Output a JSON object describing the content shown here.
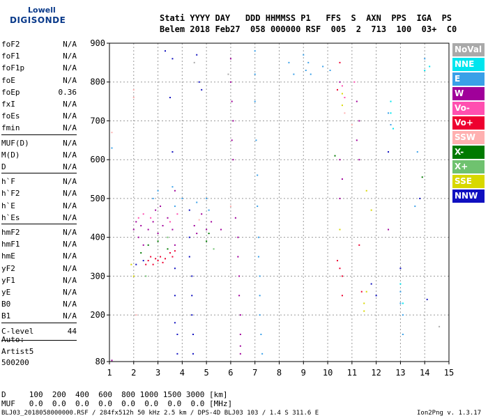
{
  "logo": {
    "line1": "Lowell",
    "line2": "DIGISONDE"
  },
  "header": {
    "line1": "Stati YYYY DAY   DDD HHMMSS P1   FFS  S  AXN  PPS  IGA  PS",
    "line2": "Belem 2018 Feb27  058 000000 RSF  005  2  713  100  03+  C0"
  },
  "params": [
    {
      "name": "foF2",
      "value": "N/A"
    },
    {
      "name": "foF1",
      "value": "N/A"
    },
    {
      "name": "foF1p",
      "value": "N/A"
    },
    {
      "name": "foE",
      "value": "N/A"
    },
    {
      "name": "foEp",
      "value": "0.36"
    },
    {
      "name": "fxI",
      "value": "N/A"
    },
    {
      "name": "foEs",
      "value": "N/A"
    },
    {
      "name": "fmin",
      "value": "N/A"
    },
    {
      "name": "MUF(D)",
      "value": "N/A"
    },
    {
      "name": "M(D)",
      "value": "N/A"
    },
    {
      "name": "D",
      "value": "N/A"
    },
    {
      "name": "h`F",
      "value": "N/A"
    },
    {
      "name": "h`F2",
      "value": "N/A"
    },
    {
      "name": "h`E",
      "value": "N/A"
    },
    {
      "name": "h`Es",
      "value": "N/A"
    },
    {
      "name": "hmF2",
      "value": "N/A"
    },
    {
      "name": "hmF1",
      "value": "N/A"
    },
    {
      "name": "hmE",
      "value": "N/A"
    },
    {
      "name": "yF2",
      "value": "N/A"
    },
    {
      "name": "yF1",
      "value": "N/A"
    },
    {
      "name": "yE",
      "value": "N/A"
    },
    {
      "name": "B0",
      "value": "N/A"
    },
    {
      "name": "B1",
      "value": "N/A"
    },
    {
      "name": "C-level",
      "value": "44"
    }
  ],
  "auto": {
    "line1": "Auto:",
    "line2": "Artist5",
    "line3": "500200"
  },
  "footer": {
    "d_row": "D     100  200  400  600  800 1000 1500 3000 [km]",
    "muf_row": "MUF   0.0  0.0  0.0  0.0  0.0  0.0  0.0  0.0 [MHz]",
    "info": "BLJ03_2018058000000.RSF / 284fx512h 50 kHz 2.5 km / DPS-4D BLJ03 103 / 1.4 S 311.6 E",
    "version": "Ion2Png v. 1.3.17"
  },
  "legend": [
    {
      "label": "NoVal",
      "color": "#a9a9a9"
    },
    {
      "label": "NNE",
      "color": "#00e5ee"
    },
    {
      "label": "E",
      "color": "#3aa0e8"
    },
    {
      "label": "W",
      "color": "#a0009a"
    },
    {
      "label": "Vo-",
      "color": "#ff4fb0"
    },
    {
      "label": "Vo+",
      "color": "#ee0030"
    },
    {
      "label": "SSW",
      "color": "#ffb0b0"
    },
    {
      "label": "X-",
      "color": "#007a00"
    },
    {
      "label": "X+",
      "color": "#6fc26f"
    },
    {
      "label": "SSE",
      "color": "#d8d800"
    },
    {
      "label": "NNW",
      "color": "#1010c0"
    }
  ],
  "chart_data": {
    "type": "scatter",
    "xlim": [
      1,
      15
    ],
    "ylim": [
      80,
      900
    ],
    "x_ticks": [
      1,
      2,
      3,
      4,
      5,
      6,
      7,
      8,
      9,
      10,
      11,
      12,
      13,
      14,
      15
    ],
    "y_ticks": [
      80,
      200,
      300,
      400,
      500,
      600,
      700,
      800,
      900
    ],
    "grid": true,
    "series": [
      {
        "name": "W",
        "color": "#a0009a",
        "points": [
          [
            2.0,
            420
          ],
          [
            2.1,
            440
          ],
          [
            2.2,
            400
          ],
          [
            2.3,
            430
          ],
          [
            2.4,
            380
          ],
          [
            2.6,
            420
          ],
          [
            2.8,
            440
          ],
          [
            3.0,
            410
          ],
          [
            3.2,
            430
          ],
          [
            3.4,
            450
          ],
          [
            3.6,
            420
          ],
          [
            3.7,
            380
          ],
          [
            2.9,
            470
          ],
          [
            3.1,
            480
          ],
          [
            4.5,
            430
          ],
          [
            4.6,
            410
          ],
          [
            4.8,
            460
          ],
          [
            5.0,
            420
          ],
          [
            5.2,
            440
          ],
          [
            5.6,
            420
          ],
          [
            6.0,
            860
          ],
          [
            6.0,
            800
          ],
          [
            6.05,
            750
          ],
          [
            6.1,
            700
          ],
          [
            6.05,
            650
          ],
          [
            6.1,
            600
          ],
          [
            6.2,
            450
          ],
          [
            6.3,
            400
          ],
          [
            6.3,
            350
          ],
          [
            6.35,
            300
          ],
          [
            6.35,
            250
          ],
          [
            6.4,
            200
          ],
          [
            6.4,
            150
          ],
          [
            6.4,
            120
          ],
          [
            6.4,
            100
          ],
          [
            10.5,
            800
          ],
          [
            10.5,
            600
          ],
          [
            10.6,
            550
          ],
          [
            10.5,
            500
          ],
          [
            11.2,
            750
          ],
          [
            11.3,
            700
          ],
          [
            11.2,
            650
          ],
          [
            11.3,
            600
          ],
          [
            12.5,
            420
          ],
          [
            3.7,
            520
          ],
          [
            1.1,
            83
          ]
        ]
      },
      {
        "name": "Vo+",
        "color": "#ee0030",
        "points": [
          [
            2.6,
            340
          ],
          [
            2.7,
            350
          ],
          [
            2.8,
            330
          ],
          [
            2.9,
            345
          ],
          [
            3.0,
            340
          ],
          [
            3.1,
            350
          ],
          [
            3.2,
            335
          ],
          [
            3.3,
            345
          ],
          [
            3.5,
            360
          ],
          [
            3.6,
            350
          ],
          [
            3.7,
            365
          ],
          [
            2.5,
            330
          ],
          [
            10.4,
            340
          ],
          [
            10.5,
            320
          ],
          [
            10.6,
            300
          ],
          [
            10.6,
            250
          ],
          [
            10.5,
            850
          ],
          [
            10.4,
            780
          ],
          [
            11.3,
            380
          ],
          [
            11.4,
            260
          ]
        ]
      },
      {
        "name": "Vo-",
        "color": "#ff4fb0",
        "points": [
          [
            2.2,
            450
          ],
          [
            2.4,
            460
          ],
          [
            2.7,
            450
          ],
          [
            3.5,
            440
          ],
          [
            3.8,
            460
          ],
          [
            10.6,
            790
          ],
          [
            10.7,
            760
          ],
          [
            11.1,
            800
          ]
        ]
      },
      {
        "name": "E",
        "color": "#3aa0e8",
        "points": [
          [
            2.8,
            500
          ],
          [
            3.0,
            520
          ],
          [
            3.6,
            530
          ],
          [
            3.7,
            480
          ],
          [
            4.0,
            500
          ],
          [
            4.6,
            490
          ],
          [
            5.0,
            500
          ],
          [
            5.1,
            470
          ],
          [
            7.0,
            880
          ],
          [
            7.0,
            820
          ],
          [
            7.0,
            750
          ],
          [
            7.05,
            650
          ],
          [
            7.1,
            560
          ],
          [
            7.1,
            480
          ],
          [
            7.15,
            400
          ],
          [
            7.15,
            350
          ],
          [
            7.2,
            300
          ],
          [
            7.2,
            250
          ],
          [
            7.2,
            200
          ],
          [
            7.25,
            150
          ],
          [
            7.3,
            100
          ],
          [
            8.4,
            850
          ],
          [
            8.6,
            820
          ],
          [
            9.0,
            870
          ],
          [
            9.1,
            830
          ],
          [
            9.2,
            850
          ],
          [
            9.3,
            820
          ],
          [
            9.8,
            840
          ],
          [
            10.1,
            830
          ],
          [
            12.5,
            720
          ],
          [
            12.6,
            690
          ],
          [
            13.0,
            260
          ],
          [
            13.0,
            230
          ],
          [
            13.1,
            200
          ],
          [
            13.1,
            150
          ],
          [
            14.0,
            860
          ],
          [
            13.7,
            620
          ],
          [
            13.6,
            480
          ],
          [
            1.1,
            630
          ]
        ]
      },
      {
        "name": "NNW",
        "color": "#1010c0",
        "points": [
          [
            3.3,
            880
          ],
          [
            3.6,
            860
          ],
          [
            3.5,
            760
          ],
          [
            3.6,
            620
          ],
          [
            3.7,
            320
          ],
          [
            3.7,
            250
          ],
          [
            3.7,
            180
          ],
          [
            3.8,
            150
          ],
          [
            3.8,
            100
          ],
          [
            4.3,
            470
          ],
          [
            4.3,
            400
          ],
          [
            4.3,
            350
          ],
          [
            4.4,
            300
          ],
          [
            4.4,
            250
          ],
          [
            4.4,
            200
          ],
          [
            4.45,
            150
          ],
          [
            4.45,
            100
          ],
          [
            4.6,
            870
          ],
          [
            4.7,
            800
          ],
          [
            4.8,
            780
          ],
          [
            2.1,
            330
          ],
          [
            2.4,
            340
          ],
          [
            12.5,
            620
          ],
          [
            13.0,
            320
          ],
          [
            13.8,
            500
          ],
          [
            14.1,
            240
          ],
          [
            11.8,
            280
          ],
          [
            12.0,
            250
          ]
        ]
      },
      {
        "name": "NNE",
        "color": "#00e5ee",
        "points": [
          [
            12.6,
            750
          ],
          [
            12.6,
            720
          ],
          [
            12.7,
            680
          ],
          [
            13.0,
            280
          ],
          [
            13.1,
            230
          ],
          [
            14.0,
            830
          ],
          [
            14.2,
            840
          ]
        ]
      },
      {
        "name": "X-",
        "color": "#007a00",
        "points": [
          [
            2.3,
            360
          ],
          [
            2.6,
            380
          ],
          [
            3.0,
            390
          ],
          [
            3.4,
            370
          ],
          [
            5.0,
            390
          ],
          [
            5.1,
            410
          ],
          [
            10.3,
            610
          ],
          [
            13.9,
            555
          ]
        ]
      },
      {
        "name": "X+",
        "color": "#6fc26f",
        "points": [
          [
            2.5,
            300
          ],
          [
            3.4,
            400
          ],
          [
            5.3,
            370
          ]
        ]
      },
      {
        "name": "SSE",
        "color": "#d8d800",
        "points": [
          [
            1.9,
            330
          ],
          [
            2.0,
            300
          ],
          [
            10.6,
            770
          ],
          [
            10.6,
            740
          ],
          [
            11.5,
            230
          ],
          [
            11.6,
            260
          ],
          [
            11.5,
            210
          ],
          [
            11.6,
            520
          ],
          [
            11.8,
            470
          ],
          [
            10.5,
            420
          ]
        ]
      },
      {
        "name": "SSW",
        "color": "#ffb0b0",
        "points": [
          [
            1.1,
            670
          ],
          [
            2.1,
            200
          ],
          [
            2.0,
            780
          ],
          [
            2.0,
            760
          ],
          [
            10.7,
            720
          ],
          [
            11.0,
            690
          ],
          [
            6.0,
            480
          ],
          [
            4.7,
            445
          ]
        ]
      },
      {
        "name": "NoVal",
        "color": "#a9a9a9",
        "points": [
          [
            4.5,
            850
          ],
          [
            5.9,
            820
          ],
          [
            14.6,
            170
          ]
        ]
      }
    ]
  }
}
